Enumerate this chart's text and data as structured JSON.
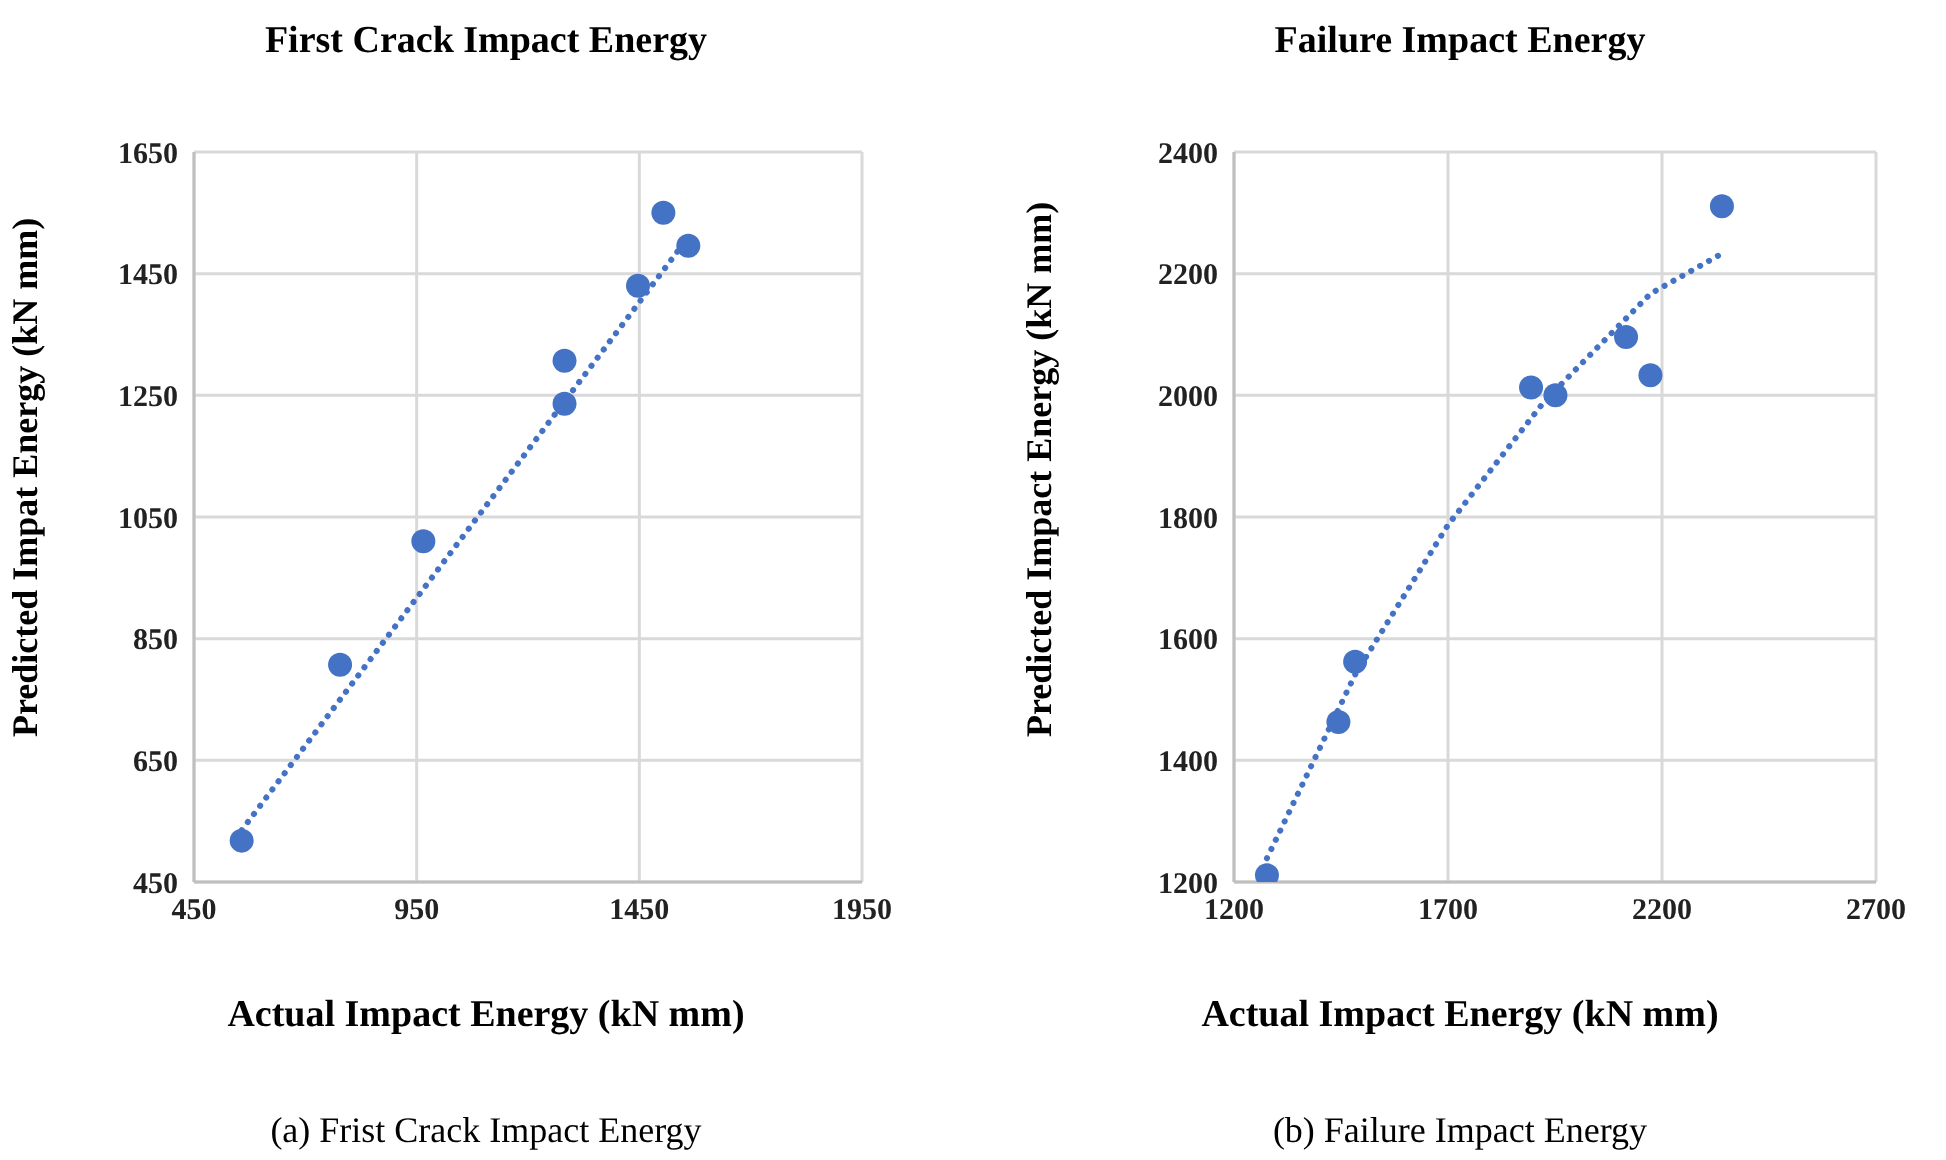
{
  "chart_data": [
    {
      "type": "scatter",
      "title": "First Crack Impact Energy",
      "xlabel": "Actual Impact Energy (kN mm)",
      "ylabel": "Predicted Impat Energy (kN mm)",
      "xlim": [
        450,
        1950
      ],
      "xticks": [
        450,
        950,
        1450,
        1950
      ],
      "ylim": [
        450,
        1650
      ],
      "yticks": [
        450,
        650,
        850,
        1050,
        1250,
        1450,
        1650
      ],
      "grid": true,
      "marker": "circle",
      "annotations": [
        "(a) Frist Crack Impact Energy"
      ],
      "series": [
        {
          "type": "scatter",
          "color": "#4472c4",
          "x": [
            557,
            778,
            965,
            1282,
            1282,
            1447,
            1504,
            1560
          ],
          "values": [
            518,
            807,
            1010,
            1307,
            1236,
            1430,
            1550,
            1496
          ]
        },
        {
          "type": "line",
          "color": "#4472c4",
          "line_style": "dotted",
          "marker": "none",
          "x": [
            557,
            1560
          ],
          "values": [
            535,
            1510
          ]
        }
      ]
    },
    {
      "type": "scatter",
      "title": "Failure Impact Energy",
      "xlabel": "Actual Impact Energy (kN mm)",
      "ylabel": "Predicted Impact Energy (kN mm)",
      "xlim": [
        1200,
        2700
      ],
      "xticks": [
        1200,
        1700,
        2200,
        2700
      ],
      "ylim": [
        1200,
        2400
      ],
      "yticks": [
        1200,
        1400,
        1600,
        1800,
        2000,
        2200,
        2400
      ],
      "grid": true,
      "marker": "circle",
      "annotations": [
        "(b) Failure Impact Energy"
      ],
      "series": [
        {
          "type": "scatter",
          "color": "#4472c4",
          "x": [
            1277,
            1444,
            1483,
            1894,
            1951,
            2116,
            2173,
            2340
          ],
          "values": [
            1211,
            1463,
            1562,
            2013,
            2000,
            2096,
            2033,
            2311
          ]
        },
        {
          "type": "line",
          "color": "#4472c4",
          "line_style": "dotted",
          "marker": "none",
          "x": [
            1277,
            1483,
            1700,
            1925,
            2173,
            2340
          ],
          "values": [
            1239,
            1541,
            1787,
            1990,
            2167,
            2233
          ]
        }
      ]
    }
  ]
}
